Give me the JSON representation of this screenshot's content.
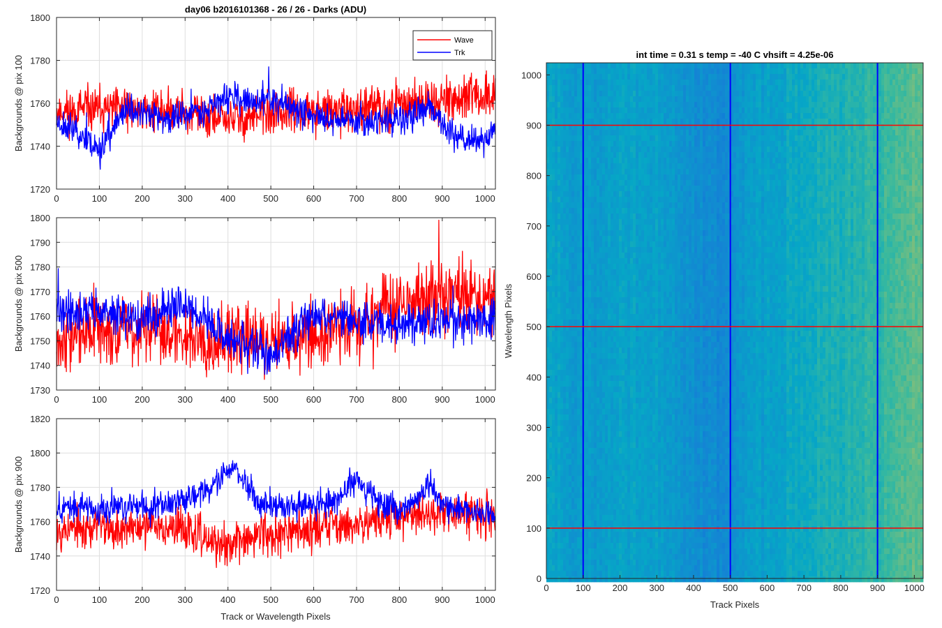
{
  "chart_data": [
    {
      "type": "line",
      "title": "day06 b2016101368 - 26 / 26 - Darks (ADU)",
      "xlabel": "",
      "ylabel": "Backgrounds @ pix 100",
      "xlim": [
        0,
        1024
      ],
      "ylim": [
        1720,
        1800
      ],
      "xticks": [
        0,
        100,
        200,
        300,
        400,
        500,
        600,
        700,
        800,
        900,
        1000
      ],
      "yticks": [
        1720,
        1740,
        1760,
        1780,
        1800
      ],
      "grid": true,
      "legend": {
        "position": "top-right",
        "entries": [
          "Wave",
          "Trk"
        ]
      },
      "series": [
        {
          "name": "Wave",
          "color": "#ff0000",
          "seed": 11,
          "noise": 5,
          "anchors": [
            [
              0,
              1756
            ],
            [
              100,
              1757
            ],
            [
              200,
              1757
            ],
            [
              300,
              1756
            ],
            [
              400,
              1752
            ],
            [
              500,
              1755
            ],
            [
              600,
              1756
            ],
            [
              700,
              1756
            ],
            [
              800,
              1760
            ],
            [
              900,
              1762
            ],
            [
              1024,
              1763
            ]
          ]
        },
        {
          "name": "Trk",
          "color": "#0000ff",
          "seed": 23,
          "noise": 3.5,
          "anchors": [
            [
              0,
              1752
            ],
            [
              60,
              1745
            ],
            [
              100,
              1738
            ],
            [
              130,
              1748
            ],
            [
              170,
              1758
            ],
            [
              250,
              1752
            ],
            [
              350,
              1758
            ],
            [
              400,
              1763
            ],
            [
              450,
              1760
            ],
            [
              500,
              1762
            ],
            [
              600,
              1754
            ],
            [
              700,
              1752
            ],
            [
              800,
              1752
            ],
            [
              870,
              1757
            ],
            [
              930,
              1745
            ],
            [
              1000,
              1742
            ],
            [
              1024,
              1748
            ]
          ]
        }
      ]
    },
    {
      "type": "line",
      "title": "",
      "xlabel": "",
      "ylabel": "Backgrounds @ pix 500",
      "xlim": [
        0,
        1024
      ],
      "ylim": [
        1730,
        1800
      ],
      "xticks": [
        0,
        100,
        200,
        300,
        400,
        500,
        600,
        700,
        800,
        900,
        1000
      ],
      "yticks": [
        1730,
        1740,
        1750,
        1760,
        1770,
        1780,
        1790,
        1800
      ],
      "grid": true,
      "series": [
        {
          "name": "Wave",
          "color": "#ff0000",
          "seed": 37,
          "noise": 7,
          "anchors": [
            [
              0,
              1752
            ],
            [
              200,
              1755
            ],
            [
              400,
              1750
            ],
            [
              600,
              1752
            ],
            [
              700,
              1757
            ],
            [
              750,
              1763
            ],
            [
              800,
              1765
            ],
            [
              900,
              1768
            ],
            [
              1024,
              1768
            ]
          ]
        },
        {
          "name": "Trk",
          "color": "#0000ff",
          "seed": 41,
          "noise": 4,
          "anchors": [
            [
              0,
              1762
            ],
            [
              100,
              1762
            ],
            [
              200,
              1758
            ],
            [
              300,
              1765
            ],
            [
              350,
              1759
            ],
            [
              400,
              1750
            ],
            [
              500,
              1744
            ],
            [
              550,
              1754
            ],
            [
              600,
              1760
            ],
            [
              700,
              1758
            ],
            [
              800,
              1757
            ],
            [
              900,
              1758
            ],
            [
              1024,
              1758
            ]
          ]
        }
      ]
    },
    {
      "type": "line",
      "title": "",
      "xlabel": "Track or Wavelength Pixels",
      "ylabel": "Backgrounds @ pix 900",
      "xlim": [
        0,
        1024
      ],
      "ylim": [
        1720,
        1820
      ],
      "xticks": [
        0,
        100,
        200,
        300,
        400,
        500,
        600,
        700,
        800,
        900,
        1000
      ],
      "yticks": [
        1720,
        1740,
        1760,
        1780,
        1800,
        1820
      ],
      "grid": true,
      "series": [
        {
          "name": "Wave",
          "color": "#ff0000",
          "seed": 53,
          "noise": 6,
          "anchors": [
            [
              0,
              1756
            ],
            [
              200,
              1757
            ],
            [
              300,
              1756
            ],
            [
              380,
              1745
            ],
            [
              420,
              1748
            ],
            [
              500,
              1754
            ],
            [
              600,
              1756
            ],
            [
              700,
              1760
            ],
            [
              800,
              1763
            ],
            [
              900,
              1765
            ],
            [
              1024,
              1765
            ]
          ]
        },
        {
          "name": "Trk",
          "color": "#0000ff",
          "seed": 67,
          "noise": 4,
          "anchors": [
            [
              0,
              1768
            ],
            [
              200,
              1768
            ],
            [
              300,
              1774
            ],
            [
              360,
              1780
            ],
            [
              400,
              1790
            ],
            [
              430,
              1788
            ],
            [
              470,
              1770
            ],
            [
              550,
              1768
            ],
            [
              650,
              1772
            ],
            [
              700,
              1785
            ],
            [
              750,
              1772
            ],
            [
              800,
              1766
            ],
            [
              850,
              1775
            ],
            [
              870,
              1782
            ],
            [
              900,
              1770
            ],
            [
              1024,
              1764
            ]
          ]
        }
      ]
    },
    {
      "type": "heatmap",
      "title": "int time = 0.31 s    temp = -40 C    vhsift = 4.25e-06",
      "xlabel": "Track Pixels",
      "ylabel": "Wavelength Pixels",
      "xlim": [
        0,
        1024
      ],
      "ylim": [
        0,
        1024
      ],
      "xticks": [
        0,
        100,
        200,
        300,
        400,
        500,
        600,
        700,
        800,
        900,
        1000
      ],
      "yticks": [
        0,
        100,
        200,
        300,
        400,
        500,
        600,
        700,
        800,
        900,
        1000
      ],
      "colormap": "parula",
      "column_level": [
        [
          0,
          0.5
        ],
        [
          100,
          0.44
        ],
        [
          200,
          0.48
        ],
        [
          300,
          0.47
        ],
        [
          400,
          0.4
        ],
        [
          480,
          0.36
        ],
        [
          520,
          0.43
        ],
        [
          600,
          0.47
        ],
        [
          700,
          0.52
        ],
        [
          800,
          0.56
        ],
        [
          900,
          0.6
        ],
        [
          960,
          0.66
        ],
        [
          1024,
          0.68
        ]
      ],
      "vertical_marker_lines": {
        "x": [
          100,
          500,
          900
        ],
        "color": "#0000ff"
      },
      "horizontal_marker_lines": {
        "y": [
          100,
          500,
          900
        ],
        "color": "#ff0000"
      }
    }
  ]
}
